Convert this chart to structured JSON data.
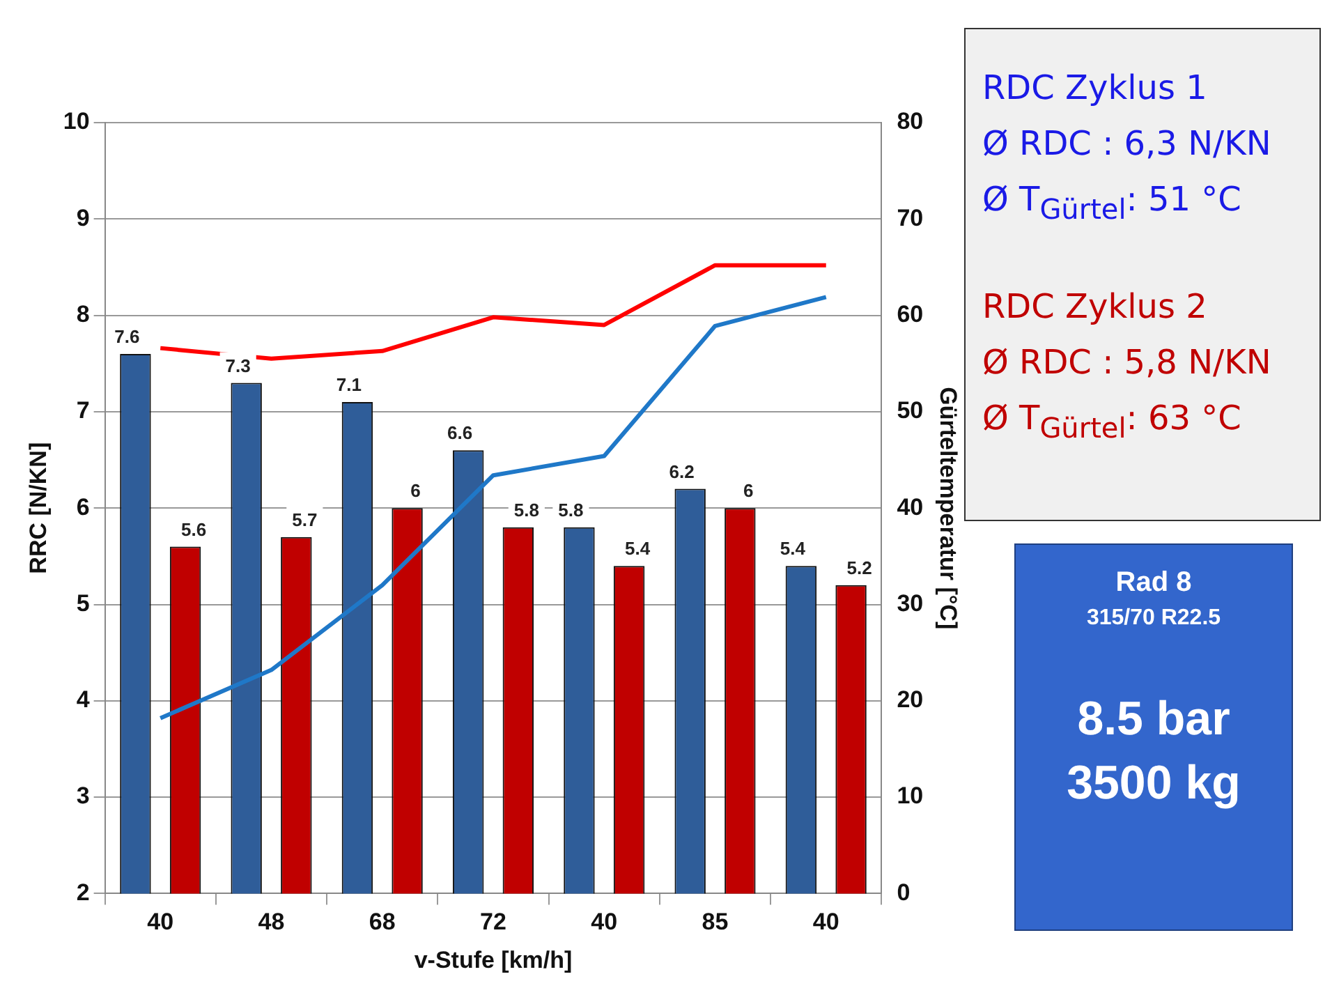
{
  "chart_data": {
    "type": "bar",
    "xlabel": "v-Stufe [km/h]",
    "ylabel": "RRC [N/KN]",
    "y2label": "Gürteltemperatur [°C]",
    "categories": [
      "40",
      "48",
      "68",
      "72",
      "40",
      "85",
      "40"
    ],
    "series": [
      {
        "color": "#2f5d99",
        "values": [
          7.6,
          7.3,
          7.1,
          6.6,
          5.8,
          6.2,
          5.4
        ],
        "value_labels": [
          "7.6",
          "7.3",
          "7.1",
          "6.6",
          "5.8",
          "6.2",
          "5.4"
        ]
      },
      {
        "color": "#c00000",
        "values": [
          5.6,
          5.7,
          6,
          5.8,
          5.4,
          6,
          5.2
        ],
        "value_labels": [
          "5.6",
          "5.7",
          "6",
          "5.8",
          "5.4",
          "6",
          "5.2"
        ]
      },
      {
        "type": "line",
        "axis": "y2",
        "color": "#ff0000",
        "values": [
          56.6,
          55.5,
          56.3,
          59.8,
          59.0,
          65.2,
          65.2
        ]
      },
      {
        "type": "line",
        "axis": "y2",
        "color": "#1f78c8",
        "values": [
          18.2,
          23.2,
          32,
          43.4,
          45.4,
          58.9,
          61.9
        ]
      }
    ],
    "ylim": [
      2,
      10
    ],
    "yticks": [
      2,
      3,
      4,
      5,
      6,
      7,
      8,
      9,
      10
    ],
    "y2lim": [
      0,
      80
    ],
    "y2ticks": [
      0,
      10,
      20,
      30,
      40,
      50,
      60,
      70,
      80
    ],
    "grid": "y",
    "legend": false,
    "marker": "none",
    "line_style": "solid",
    "annotations": [
      "RDC Zyklus 1",
      "Ø RDC  : 6,3 N/KN",
      "Ø T$_{Gürtel}$: 51 °C",
      "RDC Zyklus 2",
      "Ø RDC  : 5,8 N/KN",
      "Ø T$_{Gürtel}$: 63 °C",
      "Rad 8",
      "315/70 R22.5",
      "8.5 bar",
      "3500 kg"
    ]
  }
}
